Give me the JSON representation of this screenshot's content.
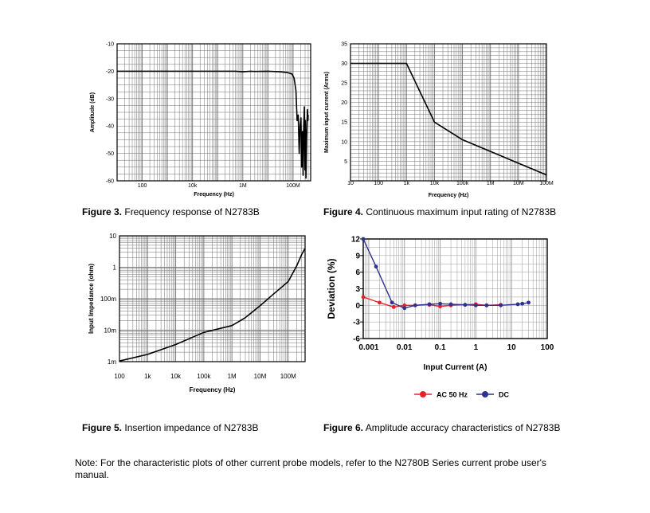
{
  "captions": {
    "fig3": {
      "label": "Figure 3.",
      "text": "Frequency response of N2783B"
    },
    "fig4": {
      "label": "Figure 4.",
      "text": "Continuous maximum input rating of N2783B"
    },
    "fig5": {
      "label": "Figure 5.",
      "text": "Insertion impedance of N2783B"
    },
    "fig6": {
      "label": "Figure 6.",
      "text": "Amplitude accuracy characteristics of N2783B"
    }
  },
  "note": "Note: For the characteristic plots of other current probe models, refer to the N2780B Series current probe user's manual.",
  "chart_data": [
    {
      "id": "fig3",
      "type": "line",
      "xlabel": "Frequency (Hz)",
      "ylabel": "Amplitude (dB)",
      "xscale": "log",
      "xlim": [
        10,
        500000000
      ],
      "ylim": [
        -60,
        -10
      ],
      "grid": true,
      "xticks": [
        {
          "v": 100,
          "label": "100"
        },
        {
          "v": 10000,
          "label": "10k"
        },
        {
          "v": 1000000,
          "label": "1M"
        },
        {
          "v": 100000000,
          "label": "100M"
        }
      ],
      "yticks": [
        {
          "v": -10,
          "label": "-10"
        },
        {
          "v": -20,
          "label": "-20"
        },
        {
          "v": -30,
          "label": "-30"
        },
        {
          "v": -40,
          "label": "-40"
        },
        {
          "v": -50,
          "label": "-50"
        },
        {
          "v": -60,
          "label": "-60"
        }
      ],
      "series": [
        {
          "color": "#000000",
          "points": [
            [
              10,
              -20
            ],
            [
              100,
              -20
            ],
            [
              10000,
              -20
            ],
            [
              500000,
              -20
            ],
            [
              1000000,
              -20.2
            ],
            [
              2000000,
              -20
            ],
            [
              3000000,
              -20.1
            ],
            [
              10000000,
              -20
            ],
            [
              30000000,
              -20.2
            ],
            [
              60000000,
              -20.5
            ],
            [
              90000000,
              -21
            ],
            [
              110000000,
              -22.5
            ],
            [
              130000000,
              -27
            ],
            [
              145000000,
              -38
            ],
            [
              160000000,
              -36
            ],
            [
              175000000,
              -50
            ],
            [
              190000000,
              -40
            ],
            [
              205000000,
              -37
            ],
            [
              220000000,
              -55
            ],
            [
              235000000,
              -42
            ],
            [
              250000000,
              -58
            ],
            [
              265000000,
              -40
            ],
            [
              280000000,
              -33
            ],
            [
              295000000,
              -56
            ],
            [
              310000000,
              -38
            ],
            [
              325000000,
              -59
            ],
            [
              345000000,
              -45
            ],
            [
              370000000,
              -34
            ],
            [
              390000000,
              -38
            ],
            [
              400000000,
              -36
            ]
          ]
        }
      ]
    },
    {
      "id": "fig4",
      "type": "line",
      "xlabel": "Frequency (Hz)",
      "ylabel": "Maximum input current (Arms)",
      "xscale": "log",
      "xlim": [
        10,
        100000000
      ],
      "ylim": [
        0,
        35
      ],
      "grid": true,
      "xticks": [
        {
          "v": 10,
          "label": "10"
        },
        {
          "v": 100,
          "label": "100"
        },
        {
          "v": 1000,
          "label": "1k"
        },
        {
          "v": 10000,
          "label": "10k"
        },
        {
          "v": 100000,
          "label": "100k"
        },
        {
          "v": 1000000,
          "label": "1M"
        },
        {
          "v": 10000000,
          "label": "10M"
        },
        {
          "v": 100000000,
          "label": "100M"
        }
      ],
      "yticks": [
        {
          "v": 5,
          "label": "5"
        },
        {
          "v": 10,
          "label": "10"
        },
        {
          "v": 15,
          "label": "15"
        },
        {
          "v": 20,
          "label": "20"
        },
        {
          "v": 25,
          "label": "25"
        },
        {
          "v": 30,
          "label": "30"
        },
        {
          "v": 35,
          "label": "35"
        }
      ],
      "series": [
        {
          "color": "#000000",
          "points": [
            [
              10,
              30
            ],
            [
              1000,
              30
            ],
            [
              10000,
              15
            ],
            [
              100000,
              10.5
            ],
            [
              100000000,
              1.5
            ]
          ]
        }
      ]
    },
    {
      "id": "fig5",
      "type": "line",
      "xlabel": "Frequency (Hz)",
      "ylabel": "Input Impedance (ohm)",
      "xscale": "log",
      "yscale": "log",
      "xlim": [
        100,
        400000000
      ],
      "ylim": [
        0.001,
        10
      ],
      "grid": true,
      "xticks": [
        {
          "v": 100,
          "label": "100"
        },
        {
          "v": 1000,
          "label": "1k"
        },
        {
          "v": 10000,
          "label": "10k"
        },
        {
          "v": 100000,
          "label": "100k"
        },
        {
          "v": 1000000,
          "label": "1M"
        },
        {
          "v": 10000000,
          "label": "10M"
        },
        {
          "v": 100000000,
          "label": "100M"
        }
      ],
      "yticks": [
        {
          "v": 0.001,
          "label": "1m"
        },
        {
          "v": 0.01,
          "label": "10m"
        },
        {
          "v": 0.1,
          "label": "100m"
        },
        {
          "v": 1,
          "label": "1"
        },
        {
          "v": 10,
          "label": "10"
        }
      ],
      "series": [
        {
          "color": "#000000",
          "points": [
            [
              100,
              0.00105
            ],
            [
              1000,
              0.0017
            ],
            [
              10000,
              0.0035
            ],
            [
              100000,
              0.0085
            ],
            [
              1000000,
              0.014
            ],
            [
              3000000,
              0.025
            ],
            [
              10000000,
              0.06
            ],
            [
              30000000,
              0.14
            ],
            [
              100000000,
              0.35
            ],
            [
              200000000,
              1.1
            ],
            [
              300000000,
              2.5
            ],
            [
              400000000,
              4
            ]
          ]
        }
      ]
    },
    {
      "id": "fig6",
      "type": "line",
      "xlabel": "Input Current (A)",
      "ylabel": "Deviation (%)",
      "xscale": "log",
      "xlim": [
        0.0007,
        100
      ],
      "ylim": [
        -6,
        12
      ],
      "grid": true,
      "legend": "bottom",
      "xticks": [
        {
          "v": 0.001,
          "label": "0.001"
        },
        {
          "v": 0.01,
          "label": "0.01"
        },
        {
          "v": 0.1,
          "label": "0.1"
        },
        {
          "v": 1,
          "label": "1"
        },
        {
          "v": 10,
          "label": "10"
        },
        {
          "v": 100,
          "label": "100"
        }
      ],
      "yticks": [
        {
          "v": 12,
          "label": "12"
        },
        {
          "v": 9,
          "label": "9"
        },
        {
          "v": 6,
          "label": "6"
        },
        {
          "v": 3,
          "label": "3"
        },
        {
          "v": 0,
          "label": "0"
        },
        {
          "v": -3,
          "label": "-3"
        },
        {
          "v": -6,
          "label": "-6"
        }
      ],
      "series": [
        {
          "name": "AC  50 Hz",
          "color": "#e32229",
          "points": [
            [
              0.0007,
              1.5
            ],
            [
              0.002,
              0.5
            ],
            [
              0.005,
              -0.3
            ],
            [
              0.01,
              0
            ],
            [
              0.02,
              0
            ],
            [
              0.05,
              0.1
            ],
            [
              0.1,
              -0.2
            ],
            [
              0.2,
              0
            ],
            [
              0.5,
              0.1
            ],
            [
              1,
              0.2
            ],
            [
              2,
              0
            ],
            [
              5,
              0.1
            ]
          ]
        },
        {
          "name": "DC",
          "color": "#2e3192",
          "points": [
            [
              0.0007,
              12
            ],
            [
              0.0016,
              7
            ],
            [
              0.0045,
              0.5
            ],
            [
              0.01,
              -0.5
            ],
            [
              0.02,
              0
            ],
            [
              0.05,
              0.2
            ],
            [
              0.1,
              0.3
            ],
            [
              0.2,
              0.2
            ],
            [
              0.5,
              0.1
            ],
            [
              1,
              0
            ],
            [
              2,
              0
            ],
            [
              5,
              0
            ],
            [
              15,
              0.2
            ],
            [
              20,
              0.3
            ],
            [
              30,
              0.5
            ]
          ]
        }
      ]
    }
  ]
}
